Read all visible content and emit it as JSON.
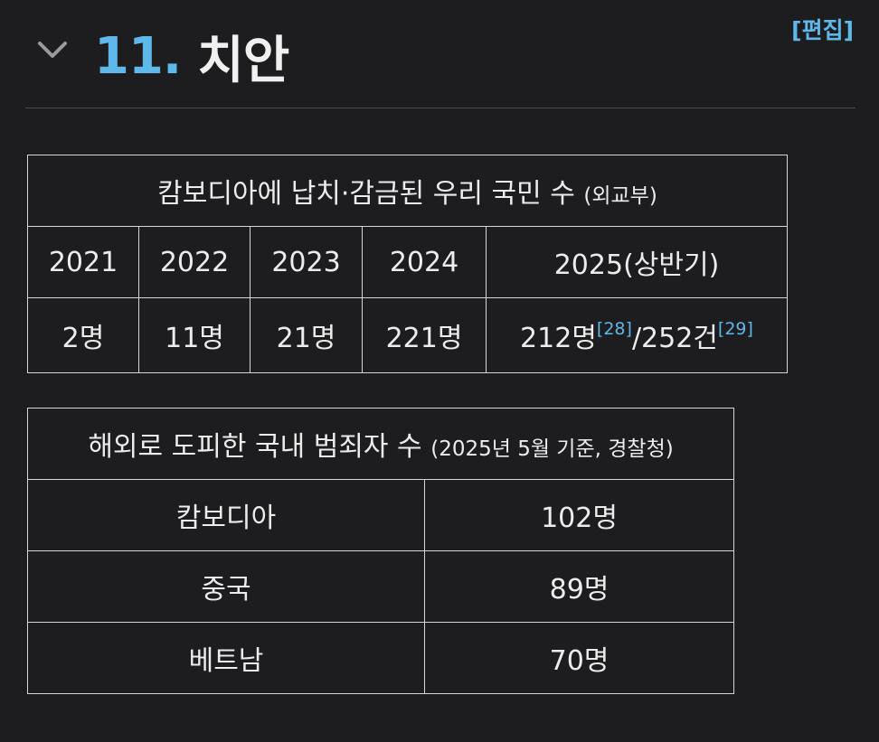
{
  "section": {
    "number": "11.",
    "title": "치안",
    "edit_label": "[편집]"
  },
  "table1": {
    "title": "캄보디아에 납치·감금된 우리 국민 수",
    "source": "(외교부)",
    "headers": [
      "2021",
      "2022",
      "2023",
      "2024",
      "2025(상반기)"
    ],
    "values": [
      "2명",
      "11명",
      "21명",
      "221명"
    ],
    "last_value_a": "212명",
    "ref_a": "[28]",
    "separator": "/",
    "last_value_b": "252건",
    "ref_b": "[29]"
  },
  "table2": {
    "title": "해외로 도피한 국내 범죄자 수",
    "source": "(2025년 5월 기준, 경찰청)",
    "rows": [
      {
        "country": "캄보디아",
        "count": "102명"
      },
      {
        "country": "중국",
        "count": "89명"
      },
      {
        "country": "베트남",
        "count": "70명"
      }
    ]
  }
}
